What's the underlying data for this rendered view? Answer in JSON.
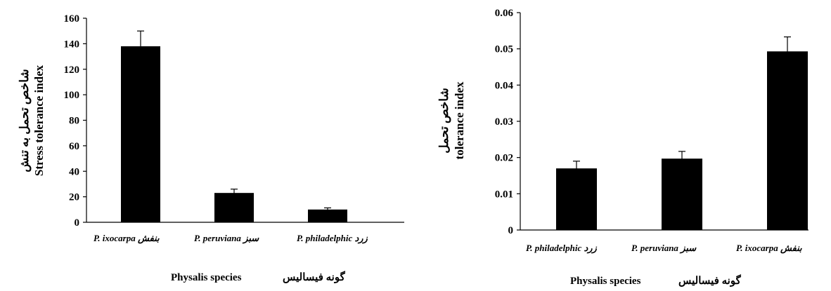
{
  "chart_data": [
    {
      "type": "bar",
      "categories": [
        "P. ixocarpa بنفش",
        "P. peruviana سبز",
        "P. philadelphic زرد"
      ],
      "values": [
        138,
        23,
        10
      ],
      "error": [
        12,
        3,
        1.3
      ],
      "ylabel_fa": "شاخص تحمل به تنش",
      "ylabel": "Stress tolerance index",
      "xlabel": "Physalis species",
      "xlabel_fa": "گونه فیسالیس",
      "ylim": [
        0,
        160
      ],
      "yticks": [
        "0",
        "20",
        "40",
        "60",
        "80",
        "100",
        "120",
        "140",
        "160"
      ],
      "grid": false,
      "colors": {
        "bar": "#000000",
        "axis": "#000000"
      }
    },
    {
      "type": "bar",
      "categories": [
        "P. philadelphic زرد",
        "P. peruviana سبز",
        "P. ixocarpa بنفش"
      ],
      "values": [
        0.017,
        0.0197,
        0.0493
      ],
      "error": [
        0.002,
        0.002,
        0.004
      ],
      "ylabel_fa": "شاخص تحمل",
      "ylabel": "tolerance index",
      "xlabel": "Physalis species",
      "xlabel_fa": "گونه فیسالیس",
      "ylim": [
        0,
        0.06
      ],
      "yticks": [
        "0",
        "0.01",
        "0.02",
        "0.03",
        "0.04",
        "0.05",
        "0.06"
      ],
      "grid": false,
      "colors": {
        "bar": "#000000",
        "axis": "#000000"
      }
    }
  ]
}
